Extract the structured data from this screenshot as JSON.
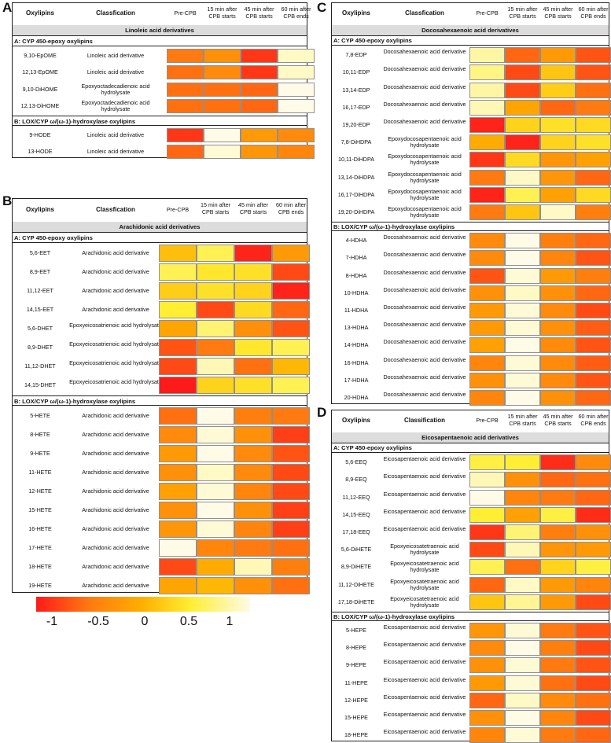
{
  "header": {
    "oxylipins": "Oxylipins",
    "classification_ac": "Classfication",
    "classification_bd": "Classification",
    "cols": [
      "Pre-CPB",
      "15 min after CPB starts",
      "45 min after CPB starts",
      "60 min after CPB ends"
    ]
  },
  "legend": {
    "ticks": [
      "-1",
      "-0.5",
      "0",
      "0.5",
      "1"
    ],
    "colors": [
      "#ff1a1a",
      "#ff7a10",
      "#ffb000",
      "#ffee33",
      "#fffbe6"
    ]
  },
  "chart_data": [
    {
      "type": "heatmap",
      "panel": "A",
      "title": "Linoleic acid derivatives",
      "color_scale": [
        -1,
        1
      ],
      "sections": [
        {
          "name": "A: CYP 450-epoxy oxylipins",
          "rows": [
            {
              "label": "9,10-EpOME",
              "class": "Linoleic acid derivative",
              "values": [
                -0.5,
                -0.3,
                -0.85,
                0.9
              ]
            },
            {
              "label": "12,13-EpOME",
              "class": "Linoleic acid derivative",
              "values": [
                -0.55,
                -0.35,
                -0.85,
                0.9
              ]
            },
            {
              "label": "9,10-DiHOME",
              "class": "Epoxyoctadecadienoic acid hydrolysate",
              "values": [
                -0.55,
                -0.55,
                -0.6,
                1.0
              ]
            },
            {
              "label": "12,13-DiHOME",
              "class": "Epoxyoctadecadienoic acid hydrolysate",
              "values": [
                -0.55,
                -0.55,
                -0.6,
                1.0
              ]
            }
          ]
        },
        {
          "name": "B: LOX/CYP ω/(ω-1)-hydroxylase oxylipins",
          "rows": [
            {
              "label": "9-HODE",
              "class": "Linoleic acid derivative",
              "values": [
                -0.85,
                1.0,
                -0.2,
                -0.35
              ]
            },
            {
              "label": "13-HODE",
              "class": "Linoleic acid derivative",
              "values": [
                -0.6,
                0.95,
                -0.25,
                -0.4
              ]
            }
          ]
        }
      ]
    },
    {
      "type": "heatmap",
      "panel": "B",
      "title": "Arachidonic acid derivatives",
      "color_scale": [
        -1,
        1
      ],
      "sections": [
        {
          "name": "A: CYP 450-epoxy oxylipins",
          "rows": [
            {
              "label": "5,6-EET",
              "class": "Arachidonic acid derivative",
              "values": [
                0.1,
                0.55,
                -0.95,
                -0.2
              ]
            },
            {
              "label": "8,9-EET",
              "class": "Arachidonic acid derivative",
              "values": [
                0.55,
                0.4,
                0.35,
                -0.75
              ]
            },
            {
              "label": "11,12-EET",
              "class": "Arachidonic acid derivative",
              "values": [
                0.2,
                0.35,
                0.25,
                -0.95
              ]
            },
            {
              "label": "14,15-EET",
              "class": "Arachidonic acid derivative",
              "values": [
                0.45,
                -0.75,
                0.3,
                -0.6
              ]
            },
            {
              "label": "5,6-DHET",
              "class": "Epoxyeicosatrienoic acid hydrolysate",
              "values": [
                -0.1,
                0.65,
                -0.3,
                -0.7
              ]
            },
            {
              "label": "8,9-DHET",
              "class": "Epoxyeicosatrienoic acid hydrolysate",
              "values": [
                -0.7,
                -0.5,
                0.4,
                0.55
              ]
            },
            {
              "label": "11,12-DHET",
              "class": "Epoxyeicosatrienoic acid hydrolysate",
              "values": [
                -0.75,
                0.85,
                -0.55,
                0.05
              ]
            },
            {
              "label": "14,15-DHET",
              "class": "Epoxyeicosatrienoic acid hydrolysate",
              "values": [
                -1.0,
                0.25,
                0.35,
                0.55
              ]
            }
          ]
        },
        {
          "name": "B: LOX/CYP ω/(ω-1)-hydroxylase oxylipins",
          "rows": [
            {
              "label": "5-HETE",
              "class": "Arachidonic acid derivative",
              "values": [
                -0.55,
                1.0,
                -0.45,
                -0.5
              ]
            },
            {
              "label": "8-HETE",
              "class": "Arachidonic acid derivative",
              "values": [
                -0.35,
                0.95,
                -0.3,
                -0.8
              ]
            },
            {
              "label": "9-HETE",
              "class": "Arachidonic acid derivative",
              "values": [
                -0.2,
                1.0,
                -0.35,
                -0.7
              ]
            },
            {
              "label": "11-HETE",
              "class": "Arachidonic acid derivative",
              "values": [
                -0.3,
                0.9,
                -0.35,
                -0.75
              ]
            },
            {
              "label": "12-HETE",
              "class": "Arachidonic acid derivative",
              "values": [
                -0.15,
                0.95,
                -0.4,
                -0.75
              ]
            },
            {
              "label": "15-HETE",
              "class": "Arachidonic acid derivative",
              "values": [
                -0.3,
                1.0,
                -0.3,
                -0.8
              ]
            },
            {
              "label": "16-HETE",
              "class": "Arachidonic acid derivative",
              "values": [
                -0.25,
                0.95,
                -0.4,
                -0.8
              ]
            },
            {
              "label": "17-HETE",
              "class": "Arachidonic acid derivative",
              "values": [
                1.0,
                -0.4,
                -0.5,
                -0.55
              ]
            },
            {
              "label": "18-HETE",
              "class": "Arachidonic acid derivative",
              "values": [
                -0.75,
                -0.05,
                0.85,
                -0.45
              ]
            },
            {
              "label": "19-HETE",
              "class": "Arachidonic acid derivative",
              "values": [
                -0.1,
                0.05,
                -0.3,
                -0.55
              ]
            }
          ]
        }
      ]
    },
    {
      "type": "heatmap",
      "panel": "C",
      "title": "Docosahexaenoic acid derivatives",
      "color_scale": [
        -1,
        1
      ],
      "sections": [
        {
          "name": "A: CYP 450-epoxy oxylipins",
          "rows": [
            {
              "label": "7,8-EDP",
              "class": "Docosahexaenoic acid derivative",
              "values": [
                0.8,
                -0.6,
                -0.2,
                -0.7
              ]
            },
            {
              "label": "10,11-EDP",
              "class": "Docosahexaenoic acid derivative",
              "values": [
                0.7,
                -0.75,
                0.15,
                -0.7
              ]
            },
            {
              "label": "13,14-EDP",
              "class": "Docosahexaenoic acid derivative",
              "values": [
                0.8,
                -0.75,
                0.2,
                -0.55
              ]
            },
            {
              "label": "16,17-EDP",
              "class": "Docosahexaenoic acid derivative",
              "values": [
                0.85,
                -0.1,
                -0.6,
                -0.5
              ]
            },
            {
              "label": "19,20-EDP",
              "class": "Docosahexaenoic acid derivative",
              "values": [
                -0.95,
                0.25,
                0.35,
                0.3
              ]
            },
            {
              "label": "7,8-DiHDPA",
              "class": "Epoxydocosapentaenoic acid hydrolysate",
              "values": [
                -0.05,
                -0.95,
                0.25,
                0.35
              ]
            },
            {
              "label": "10,11-DiHDPA",
              "class": "Epoxydocosapentaenoic acid hydrolysate",
              "values": [
                -0.85,
                0.3,
                -0.25,
                -0.15
              ]
            },
            {
              "label": "13,14-DiHDPA",
              "class": "Epoxydocosapentaenoic acid hydrolysate",
              "values": [
                -0.5,
                0.9,
                -0.25,
                -0.6
              ]
            },
            {
              "label": "16,17-DiHDPA",
              "class": "Epoxydocosapentaenoic acid hydrolysate",
              "values": [
                -0.95,
                0.55,
                -0.15,
                0.3
              ]
            },
            {
              "label": "19,20-DiHDPA",
              "class": "Epoxydocosapentaenoic acid hydrolysate",
              "values": [
                -0.5,
                0.15,
                0.9,
                -0.45
              ]
            }
          ]
        },
        {
          "name": "B: LOX/CYP ω/(ω-1)-hydroxylase oxylipins",
          "rows": [
            {
              "label": "4-HDHA",
              "class": "Docosahexaenoic acid derivative",
              "values": [
                -0.35,
                1.0,
                -0.45,
                -0.6
              ]
            },
            {
              "label": "7-HDHA",
              "class": "Docosahexaenoic acid derivative",
              "values": [
                -0.35,
                1.0,
                -0.4,
                -0.7
              ]
            },
            {
              "label": "8-HDHA",
              "class": "Docosahexaenoic acid derivative",
              "values": [
                -0.7,
                0.95,
                -0.2,
                -0.45
              ]
            },
            {
              "label": "10-HDHA",
              "class": "Docosahexaenoic acid derivative",
              "values": [
                -0.3,
                0.9,
                -0.3,
                -0.6
              ]
            },
            {
              "label": "11-HDHA",
              "class": "Docosahexaenoic acid derivative",
              "values": [
                -0.2,
                0.95,
                -0.35,
                -0.75
              ]
            },
            {
              "label": "13-HDHA",
              "class": "Docosahexaenoic acid derivative",
              "values": [
                -0.2,
                0.95,
                -0.3,
                -0.65
              ]
            },
            {
              "label": "14-HDHA",
              "class": "Docosahexaenoic acid derivative",
              "values": [
                -0.15,
                1.0,
                -0.35,
                -0.7
              ]
            },
            {
              "label": "16-HDHA",
              "class": "Docosahexaenoic acid derivative",
              "values": [
                -0.4,
                0.95,
                -0.35,
                -0.65
              ]
            },
            {
              "label": "17-HDHA",
              "class": "Docosahexaenoic acid derivative",
              "values": [
                -0.3,
                0.95,
                -0.35,
                -0.7
              ]
            },
            {
              "label": "20-HDHA",
              "class": "Docosahexaenoic acid derivative",
              "values": [
                -0.4,
                1.0,
                -0.3,
                -0.6
              ]
            }
          ]
        }
      ]
    },
    {
      "type": "heatmap",
      "panel": "D",
      "title": "Eicosapentaenoic acid derivatives",
      "color_scale": [
        -1,
        1
      ],
      "sections": [
        {
          "name": "A: CYP 450-epoxy oxylipins",
          "rows": [
            {
              "label": "5,6-EEQ",
              "class": "Eicosapentaenoic acid derivative",
              "values": [
                0.5,
                0.45,
                -0.9,
                -0.35
              ]
            },
            {
              "label": "8,9-EEQ",
              "class": "Eicosapentaenoic acid derivative",
              "values": [
                0.85,
                -0.3,
                -0.6,
                -0.55
              ]
            },
            {
              "label": "11,12-EEQ",
              "class": "Eicosapentaenoic acid derivative",
              "values": [
                1.0,
                -0.4,
                -0.5,
                -0.6
              ]
            },
            {
              "label": "14,15-EEQ",
              "class": "Eicosapentaenoic acid derivative",
              "values": [
                0.45,
                -0.15,
                0.5,
                -0.9
              ]
            },
            {
              "label": "17,18-EEQ",
              "class": "Eicosapentaenoic acid derivative",
              "values": [
                -0.85,
                0.65,
                -0.45,
                -0.3
              ]
            },
            {
              "label": "5,6-DiHETE",
              "class": "Epoxyeicosatetraenoic acid hydrolysate",
              "values": [
                -0.75,
                0.85,
                -0.25,
                -0.2
              ]
            },
            {
              "label": "8,9-DiHETE",
              "class": "Epoxyeicosatetraenoic acid hydrolysate",
              "values": [
                0.55,
                -0.55,
                0.25,
                0.5
              ]
            },
            {
              "label": "11,12-DiHETE",
              "class": "Epoxyeicosatetraenoic acid hydrolysate",
              "values": [
                -0.6,
                0.9,
                -0.2,
                -0.4
              ]
            },
            {
              "label": "17,18-DiHETE",
              "class": "Epoxyeicosatetraenoic acid hydrolysate",
              "values": [
                0.15,
                0.75,
                -0.2,
                -0.75
              ]
            }
          ]
        },
        {
          "name": "B: LOX/CYP ω/(ω-1)-hydroxylase oxylipins",
          "rows": [
            {
              "label": "5-HEPE",
              "class": "Eicosapentaenoic acid derivative",
              "values": [
                -0.25,
                0.95,
                -0.5,
                -0.7
              ]
            },
            {
              "label": "8-HEPE",
              "class": "Eicosapentaenoic acid derivative",
              "values": [
                -0.35,
                1.0,
                -0.45,
                -0.75
              ]
            },
            {
              "label": "9-HEPE",
              "class": "Eicosapentaenoic acid derivative",
              "values": [
                -0.3,
                0.95,
                -0.5,
                -0.7
              ]
            },
            {
              "label": "11-HEPE",
              "class": "Eicosapentaenoic acid derivative",
              "values": [
                -0.2,
                0.95,
                -0.55,
                -0.75
              ]
            },
            {
              "label": "12-HEPE",
              "class": "Eicosapentaenoic acid derivative",
              "values": [
                -0.6,
                0.9,
                -0.35,
                -0.55
              ]
            },
            {
              "label": "15-HEPE",
              "class": "Eicosapentaenoic acid derivative",
              "values": [
                -0.3,
                1.0,
                -0.4,
                -0.75
              ]
            },
            {
              "label": "18-HEPE",
              "class": "Eicosapentaenoic acid derivative",
              "values": [
                -0.4,
                0.95,
                -0.5,
                -0.6
              ]
            }
          ]
        }
      ]
    }
  ]
}
